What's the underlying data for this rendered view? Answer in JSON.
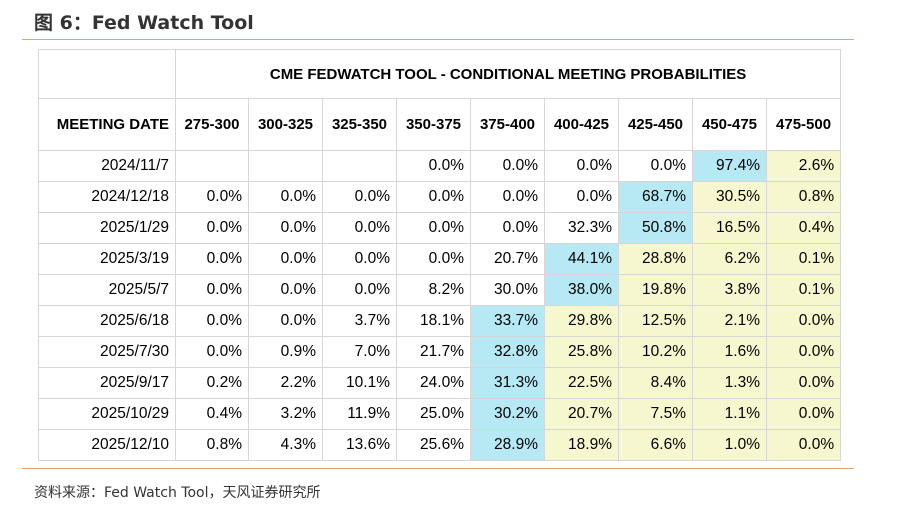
{
  "figure_title": "图 6：Fed Watch Tool",
  "table": {
    "title": "CME FEDWATCH TOOL - CONDITIONAL MEETING PROBABILITIES",
    "date_header": "MEETING DATE",
    "columns": [
      "275-300",
      "300-325",
      "325-350",
      "350-375",
      "375-400",
      "400-425",
      "425-450",
      "450-475",
      "475-500"
    ],
    "rows": [
      {
        "date": "2024/11/7",
        "values": [
          "",
          "",
          "",
          "0.0%",
          "0.0%",
          "0.0%",
          "0.0%",
          "97.4%",
          "2.6%"
        ]
      },
      {
        "date": "2024/12/18",
        "values": [
          "0.0%",
          "0.0%",
          "0.0%",
          "0.0%",
          "0.0%",
          "0.0%",
          "68.7%",
          "30.5%",
          "0.8%"
        ]
      },
      {
        "date": "2025/1/29",
        "values": [
          "0.0%",
          "0.0%",
          "0.0%",
          "0.0%",
          "0.0%",
          "32.3%",
          "50.8%",
          "16.5%",
          "0.4%"
        ]
      },
      {
        "date": "2025/3/19",
        "values": [
          "0.0%",
          "0.0%",
          "0.0%",
          "0.0%",
          "20.7%",
          "44.1%",
          "28.8%",
          "6.2%",
          "0.1%"
        ]
      },
      {
        "date": "2025/5/7",
        "values": [
          "0.0%",
          "0.0%",
          "0.0%",
          "8.2%",
          "30.0%",
          "38.0%",
          "19.8%",
          "3.8%",
          "0.1%"
        ]
      },
      {
        "date": "2025/6/18",
        "values": [
          "0.0%",
          "0.0%",
          "3.7%",
          "18.1%",
          "33.7%",
          "29.8%",
          "12.5%",
          "2.1%",
          "0.0%"
        ]
      },
      {
        "date": "2025/7/30",
        "values": [
          "0.0%",
          "0.9%",
          "7.0%",
          "21.7%",
          "32.8%",
          "25.8%",
          "10.2%",
          "1.6%",
          "0.0%"
        ]
      },
      {
        "date": "2025/9/17",
        "values": [
          "0.2%",
          "2.2%",
          "10.1%",
          "24.0%",
          "31.3%",
          "22.5%",
          "8.4%",
          "1.3%",
          "0.0%"
        ]
      },
      {
        "date": "2025/10/29",
        "values": [
          "0.4%",
          "3.2%",
          "11.9%",
          "25.0%",
          "30.2%",
          "20.7%",
          "7.5%",
          "1.1%",
          "0.0%"
        ]
      },
      {
        "date": "2025/12/10",
        "values": [
          "0.8%",
          "4.3%",
          "13.6%",
          "25.6%",
          "28.9%",
          "18.9%",
          "6.6%",
          "1.0%",
          "0.0%"
        ]
      }
    ],
    "highlight": [
      [
        "",
        "",
        "",
        "",
        "",
        "",
        "",
        "blue",
        "yellow"
      ],
      [
        "",
        "",
        "",
        "",
        "",
        "",
        "blue",
        "yellow",
        "yellow"
      ],
      [
        "",
        "",
        "",
        "",
        "",
        "",
        "blue",
        "yellow",
        "yellow"
      ],
      [
        "",
        "",
        "",
        "",
        "",
        "blue",
        "yellow",
        "yellow",
        "yellow"
      ],
      [
        "",
        "",
        "",
        "",
        "",
        "blue",
        "yellow",
        "yellow",
        "yellow"
      ],
      [
        "",
        "",
        "",
        "",
        "blue",
        "yellow",
        "yellow",
        "yellow",
        "yellow"
      ],
      [
        "",
        "",
        "",
        "",
        "blue",
        "yellow",
        "yellow",
        "yellow",
        "yellow"
      ],
      [
        "",
        "",
        "",
        "",
        "blue",
        "yellow",
        "yellow",
        "yellow",
        "yellow"
      ],
      [
        "",
        "",
        "",
        "",
        "blue",
        "yellow",
        "yellow",
        "yellow",
        "yellow"
      ],
      [
        "",
        "",
        "",
        "",
        "blue",
        "yellow",
        "yellow",
        "yellow",
        "yellow"
      ]
    ],
    "colors": {
      "blue": "#b7e9f4",
      "yellow": "#f6f7cf",
      "rule": "#e8a16a"
    }
  },
  "source": "资料来源：Fed Watch Tool，天风证券研究所"
}
